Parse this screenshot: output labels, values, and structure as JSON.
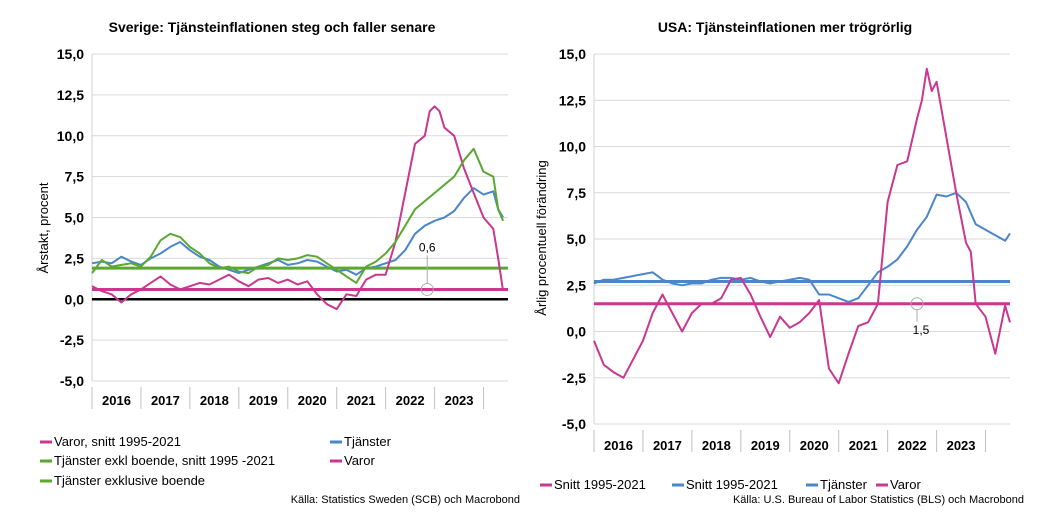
{
  "chart_data": [
    {
      "type": "line",
      "title": "Sverige: Tjänsteinflationen steg och faller senare",
      "ylabel": "Årstakt, procent",
      "xlabel": "",
      "ylim": [
        -5,
        15
      ],
      "xlim": [
        2015.5,
        2024.0
      ],
      "y_ticks": [
        "15,0",
        "12,5",
        "10,0",
        "7,5",
        "5,0",
        "2,5",
        "0,0",
        "-2,5",
        "-5,0"
      ],
      "y_tick_values": [
        15,
        12.5,
        10,
        7.5,
        5,
        2.5,
        0,
        -2.5,
        -5
      ],
      "x_categories": [
        "2016",
        "2017",
        "2018",
        "2019",
        "2020",
        "2021",
        "2022",
        "2023"
      ],
      "grid": "horizontal",
      "legend_placement": "bottom",
      "annotations": [
        {
          "text": "0,6",
          "x": 2022.35,
          "y": 0.6
        }
      ],
      "series": [
        {
          "name": "Varor, snitt 1995-2021",
          "color": "#c9378f",
          "width": 3,
          "kind": "hline",
          "value": 0.6
        },
        {
          "name": "Tjänster",
          "color": "#4a86c8",
          "width": 2,
          "x": [
            2015.5,
            2015.7,
            2015.9,
            2016.1,
            2016.3,
            2016.5,
            2016.7,
            2016.9,
            2017.1,
            2017.3,
            2017.5,
            2017.7,
            2017.9,
            2018.1,
            2018.3,
            2018.5,
            2018.7,
            2018.9,
            2019.1,
            2019.3,
            2019.5,
            2019.7,
            2019.9,
            2020.1,
            2020.3,
            2020.5,
            2020.7,
            2020.9,
            2021.1,
            2021.3,
            2021.5,
            2021.7,
            2021.9,
            2022.1,
            2022.3,
            2022.5,
            2022.7,
            2022.9,
            2023.1,
            2023.3,
            2023.5,
            2023.7,
            2023.8,
            2023.9
          ],
          "y": [
            2.2,
            2.3,
            2.2,
            2.6,
            2.3,
            2.1,
            2.5,
            2.8,
            3.2,
            3.5,
            3.0,
            2.6,
            2.4,
            2.0,
            1.8,
            1.6,
            1.8,
            2.0,
            2.2,
            2.4,
            2.1,
            2.2,
            2.4,
            2.3,
            2.0,
            1.7,
            1.8,
            1.5,
            1.9,
            2.0,
            2.2,
            2.4,
            3.0,
            4.0,
            4.5,
            4.8,
            5.0,
            5.4,
            6.2,
            6.8,
            6.4,
            6.6,
            5.5,
            5.0
          ]
        },
        {
          "name": "Tjänster exkl boende, snitt 1995 -2021",
          "color": "#5aa832",
          "width": 3,
          "kind": "hline",
          "value": 1.9
        },
        {
          "name": "Varor",
          "color": "#c9378f",
          "width": 2,
          "x": [
            2015.5,
            2015.7,
            2015.9,
            2016.1,
            2016.3,
            2016.5,
            2016.7,
            2016.9,
            2017.1,
            2017.3,
            2017.5,
            2017.7,
            2017.9,
            2018.1,
            2018.3,
            2018.5,
            2018.7,
            2018.9,
            2019.1,
            2019.3,
            2019.5,
            2019.7,
            2019.9,
            2020.1,
            2020.3,
            2020.5,
            2020.7,
            2020.9,
            2021.1,
            2021.3,
            2021.5,
            2021.7,
            2021.9,
            2022.1,
            2022.3,
            2022.4,
            2022.5,
            2022.6,
            2022.7,
            2022.9,
            2023.1,
            2023.3,
            2023.5,
            2023.7,
            2023.8,
            2023.9
          ],
          "y": [
            0.8,
            0.5,
            0.3,
            -0.2,
            0.3,
            0.6,
            1.0,
            1.4,
            0.9,
            0.6,
            0.8,
            1.0,
            0.9,
            1.2,
            1.5,
            1.1,
            0.8,
            1.2,
            1.3,
            1.0,
            1.2,
            0.9,
            1.1,
            0.3,
            -0.3,
            -0.6,
            0.3,
            0.2,
            1.2,
            1.5,
            1.5,
            3.5,
            6.5,
            9.5,
            10.0,
            11.5,
            11.8,
            11.5,
            10.5,
            10.0,
            8.0,
            6.5,
            5.0,
            4.3,
            2.5,
            0.5
          ]
        },
        {
          "name": "Tjänster exklusive boende",
          "color": "#5aa832",
          "width": 2,
          "x": [
            2015.5,
            2015.7,
            2015.9,
            2016.1,
            2016.3,
            2016.5,
            2016.7,
            2016.9,
            2017.1,
            2017.3,
            2017.5,
            2017.7,
            2017.9,
            2018.1,
            2018.3,
            2018.5,
            2018.7,
            2018.9,
            2019.1,
            2019.3,
            2019.5,
            2019.7,
            2019.9,
            2020.1,
            2020.3,
            2020.5,
            2020.7,
            2020.9,
            2021.1,
            2021.3,
            2021.5,
            2021.7,
            2021.9,
            2022.1,
            2022.3,
            2022.5,
            2022.7,
            2022.9,
            2023.1,
            2023.3,
            2023.5,
            2023.7,
            2023.8,
            2023.9
          ],
          "y": [
            1.6,
            2.4,
            2.0,
            2.1,
            2.2,
            2.0,
            2.6,
            3.6,
            4.0,
            3.8,
            3.2,
            2.8,
            2.2,
            1.9,
            2.0,
            1.7,
            1.6,
            2.0,
            2.1,
            2.5,
            2.4,
            2.5,
            2.7,
            2.6,
            2.2,
            1.8,
            1.4,
            1.0,
            2.0,
            2.3,
            2.8,
            3.5,
            4.5,
            5.5,
            6.0,
            6.5,
            7.0,
            7.5,
            8.5,
            9.2,
            7.8,
            7.5,
            5.5,
            4.8
          ]
        }
      ],
      "legend": [
        [
          "Varor, snitt 1995-2021",
          "Tjänster"
        ],
        [
          "Tjänster exkl boende, snitt 1995 -2021",
          "Varor"
        ],
        [
          "Tjänster exklusive boende"
        ]
      ],
      "zero_line": true
    },
    {
      "type": "line",
      "title": "USA: Tjänsteinflationen mer trögrörlig",
      "ylabel": "Årlig procentuell förändring",
      "xlabel": "",
      "ylim": [
        -5,
        15
      ],
      "xlim": [
        2015.5,
        2024.0
      ],
      "y_ticks": [
        "15,0",
        "12,5",
        "10,0",
        "7,5",
        "5,0",
        "2,5",
        "0,0",
        "-2,5",
        "-5,0"
      ],
      "y_tick_values": [
        15,
        12.5,
        10,
        7.5,
        5,
        2.5,
        0,
        -2.5,
        -5
      ],
      "x_categories": [
        "2016",
        "2017",
        "2018",
        "2019",
        "2020",
        "2021",
        "2022",
        "2023"
      ],
      "grid": "horizontal",
      "legend_placement": "bottom",
      "annotations": [
        {
          "text": "1,5",
          "x": 2022.1,
          "y": 1.5
        }
      ],
      "series": [
        {
          "name": "Snitt 1995-2021",
          "color": "#c9378f",
          "width": 3,
          "kind": "hline",
          "value": 1.5
        },
        {
          "name": "Snitt 1995-2021",
          "color": "#4a86c8",
          "width": 3,
          "kind": "hline",
          "value": 2.7
        },
        {
          "name": "Tjänster",
          "color": "#4a86c8",
          "width": 2,
          "x": [
            2015.5,
            2015.7,
            2015.9,
            2016.1,
            2016.3,
            2016.5,
            2016.7,
            2016.9,
            2017.1,
            2017.3,
            2017.5,
            2017.7,
            2017.9,
            2018.1,
            2018.3,
            2018.5,
            2018.7,
            2018.9,
            2019.1,
            2019.3,
            2019.5,
            2019.7,
            2019.9,
            2020.1,
            2020.3,
            2020.5,
            2020.7,
            2020.9,
            2021.1,
            2021.3,
            2021.5,
            2021.7,
            2021.9,
            2022.1,
            2022.3,
            2022.5,
            2022.7,
            2022.9,
            2023.1,
            2023.3,
            2023.5,
            2023.7,
            2023.9,
            2024.0
          ],
          "y": [
            2.6,
            2.8,
            2.8,
            2.9,
            3.0,
            3.1,
            3.2,
            2.8,
            2.6,
            2.5,
            2.6,
            2.6,
            2.8,
            2.9,
            2.9,
            2.8,
            2.9,
            2.7,
            2.6,
            2.7,
            2.8,
            2.9,
            2.8,
            2.0,
            2.0,
            1.8,
            1.6,
            1.8,
            2.5,
            3.2,
            3.5,
            3.9,
            4.6,
            5.5,
            6.2,
            7.4,
            7.3,
            7.5,
            7.0,
            5.8,
            5.5,
            5.2,
            4.9,
            5.3
          ]
        },
        {
          "name": "Varor",
          "color": "#c9378f",
          "width": 2,
          "x": [
            2015.5,
            2015.7,
            2015.9,
            2016.1,
            2016.3,
            2016.5,
            2016.7,
            2016.9,
            2017.1,
            2017.3,
            2017.5,
            2017.7,
            2017.9,
            2018.1,
            2018.3,
            2018.5,
            2018.7,
            2018.9,
            2019.1,
            2019.3,
            2019.5,
            2019.7,
            2019.9,
            2020.1,
            2020.3,
            2020.5,
            2020.7,
            2020.9,
            2021.1,
            2021.3,
            2021.5,
            2021.7,
            2021.9,
            2022.1,
            2022.2,
            2022.3,
            2022.4,
            2022.5,
            2022.7,
            2022.9,
            2023.1,
            2023.2,
            2023.3,
            2023.5,
            2023.7,
            2023.9,
            2024.0
          ],
          "y": [
            -0.5,
            -1.8,
            -2.2,
            -2.5,
            -1.5,
            -0.5,
            1.0,
            2.0,
            1.0,
            0.0,
            1.0,
            1.5,
            1.5,
            1.8,
            2.8,
            2.9,
            2.0,
            0.8,
            -0.3,
            0.8,
            0.2,
            0.5,
            1.0,
            1.7,
            -2.0,
            -2.8,
            -1.2,
            0.3,
            0.5,
            1.5,
            7.0,
            9.0,
            9.2,
            11.5,
            12.5,
            14.2,
            13.0,
            13.5,
            10.5,
            7.5,
            4.8,
            4.3,
            1.5,
            0.8,
            -1.2,
            1.4,
            0.5
          ]
        }
      ],
      "legend": [
        [
          "Snitt 1995-2021",
          "Snitt 1995-2021",
          "Tjänster",
          "Varor"
        ]
      ],
      "zero_line": false
    }
  ],
  "sources": {
    "left": "Källa: Statistics Sweden (SCB) och Macrobond",
    "right": "Källa: U.S. Bureau of Labor Statistics (BLS) och Macrobond"
  }
}
